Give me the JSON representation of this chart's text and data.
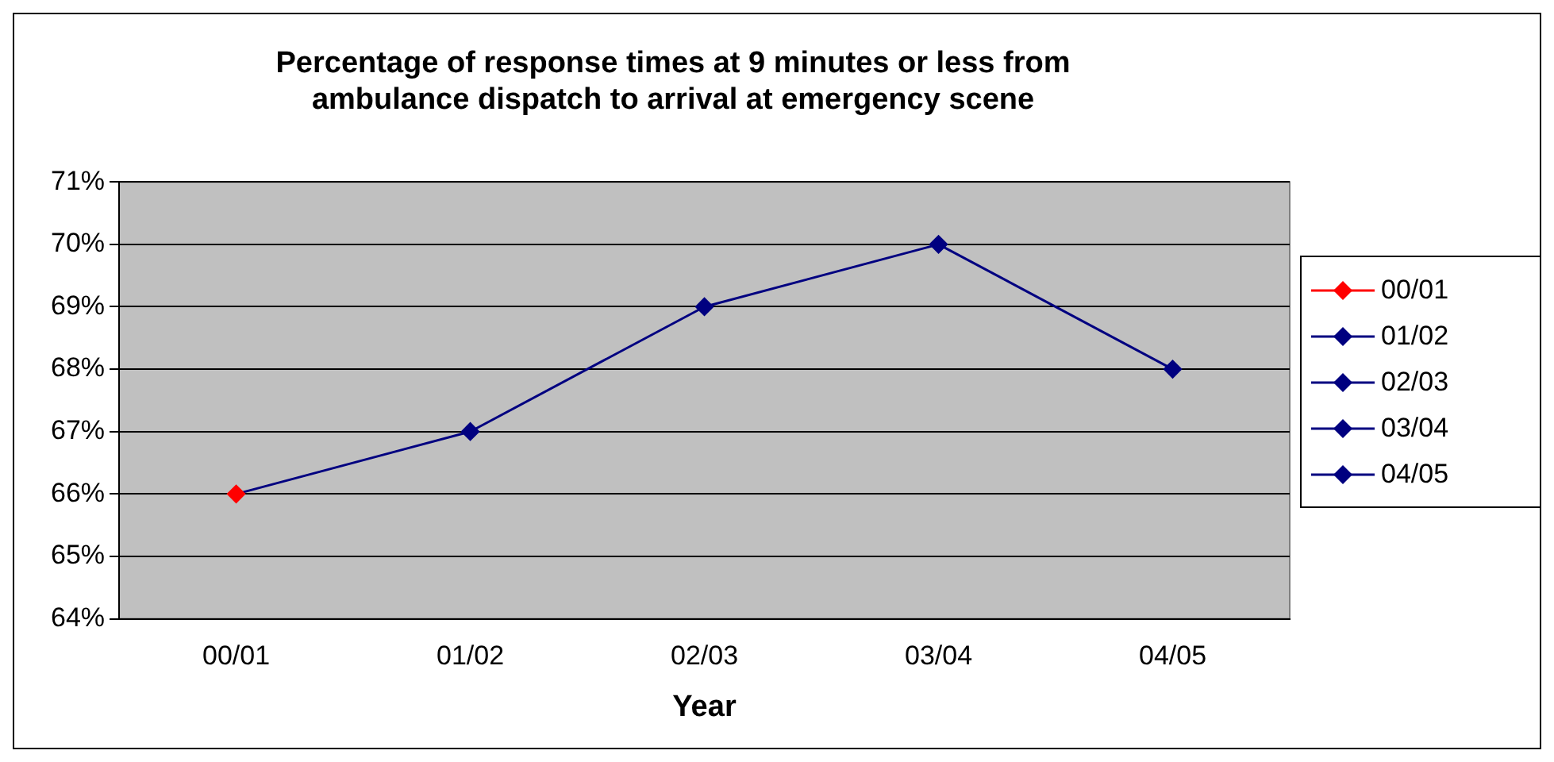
{
  "chart_data": {
    "type": "line",
    "title": "Percentage of response times at 9 minutes or less from ambulance dispatch to arrival at emergency scene",
    "xlabel": "Year",
    "categories": [
      "00/01",
      "01/02",
      "02/03",
      "03/04",
      "04/05"
    ],
    "series": [
      {
        "color": "#000080",
        "colors": [
          "#ff0000",
          "#000080",
          "#000080",
          "#000080",
          "#000080"
        ],
        "values": [
          66,
          67,
          69,
          70,
          68
        ]
      }
    ],
    "ylim": [
      64,
      71
    ],
    "yticks": [
      {
        "value": 64,
        "label": "64%"
      },
      {
        "value": 65,
        "label": "65%"
      },
      {
        "value": 66,
        "label": "66%"
      },
      {
        "value": 67,
        "label": "67%"
      },
      {
        "value": 68,
        "label": "68%"
      },
      {
        "value": 69,
        "label": "69%"
      },
      {
        "value": 70,
        "label": "70%"
      },
      {
        "value": 71,
        "label": "71%"
      }
    ],
    "grid": "y",
    "marker": "diamond",
    "line_style": "solid"
  }
}
